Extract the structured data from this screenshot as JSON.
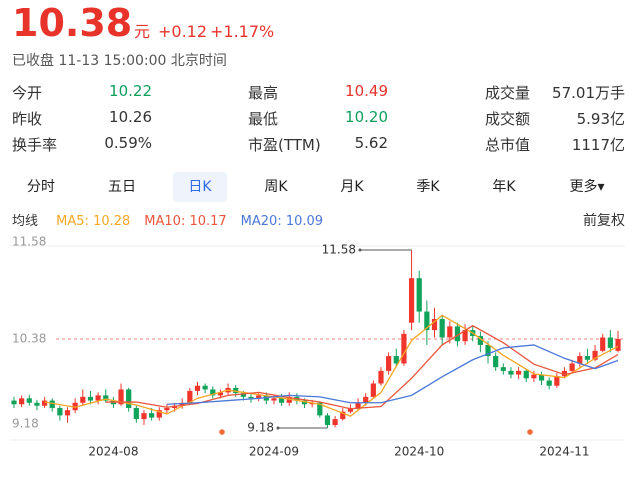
{
  "quote": {
    "price": "10.38",
    "unit": "元",
    "change": "+0.12",
    "change_pct": "+1.17%",
    "status": "已收盘 11-13 15:00:00 北京时间"
  },
  "stats": [
    [
      {
        "label": "今开",
        "value": "10.22",
        "color": "#0e9f5d"
      },
      {
        "label": "最高",
        "value": "10.49",
        "color": "#e8332b"
      },
      {
        "label": "成交量",
        "value": "57.01万手"
      }
    ],
    [
      {
        "label": "昨收",
        "value": "10.26"
      },
      {
        "label": "最低",
        "value": "10.20",
        "color": "#0e9f5d"
      },
      {
        "label": "成交额",
        "value": "5.93亿"
      }
    ],
    [
      {
        "label": "换手率",
        "value": "0.59%"
      },
      {
        "label": "市盈(TTM)",
        "value": "5.62"
      },
      {
        "label": "总市值",
        "value": "1117亿"
      }
    ]
  ],
  "tabs": [
    "分时",
    "五日",
    "日K",
    "周K",
    "月K",
    "季K",
    "年K",
    "更多▾"
  ],
  "active_tab": 2,
  "chart_data": {
    "type": "candlestick",
    "ma_label": "均线",
    "adjust": "前复权",
    "up_color": "#f0362c",
    "down_color": "#10a35a",
    "ylim": [
      9.18,
      11.58
    ],
    "yticks": [
      9.18,
      10.38,
      11.58
    ],
    "categories": [
      null,
      null,
      null,
      null,
      null,
      null,
      null,
      null,
      null,
      null,
      null,
      null,
      null,
      "2024-08",
      null,
      null,
      null,
      null,
      null,
      null,
      null,
      null,
      null,
      null,
      null,
      null,
      null,
      null,
      null,
      null,
      null,
      null,
      null,
      null,
      "2024-09",
      null,
      null,
      null,
      null,
      null,
      null,
      null,
      null,
      null,
      null,
      null,
      null,
      null,
      null,
      null,
      null,
      null,
      null,
      "2024-10",
      null,
      null,
      null,
      null,
      null,
      null,
      null,
      null,
      null,
      null,
      null,
      null,
      null,
      null,
      null,
      null,
      null,
      null,
      "2024-11",
      null,
      null,
      null,
      null,
      null,
      null,
      null,
      null
    ],
    "candles": [
      [
        9.55,
        9.5,
        9.6,
        9.45
      ],
      [
        9.5,
        9.58,
        9.62,
        9.46
      ],
      [
        9.58,
        9.52,
        9.63,
        9.48
      ],
      [
        9.52,
        9.48,
        9.56,
        9.42
      ],
      [
        9.48,
        9.55,
        9.6,
        9.45
      ],
      [
        9.55,
        9.45,
        9.58,
        9.4
      ],
      [
        9.45,
        9.35,
        9.48,
        9.28
      ],
      [
        9.35,
        9.42,
        9.46,
        9.25
      ],
      [
        9.42,
        9.52,
        9.58,
        9.38
      ],
      [
        9.52,
        9.6,
        9.7,
        9.48
      ],
      [
        9.6,
        9.55,
        9.68,
        9.5
      ],
      [
        9.55,
        9.62,
        9.66,
        9.5
      ],
      [
        9.62,
        9.55,
        9.7,
        9.52
      ],
      [
        9.55,
        9.5,
        9.6,
        9.45
      ],
      [
        9.5,
        9.7,
        9.78,
        9.48
      ],
      [
        9.7,
        9.45,
        9.72,
        9.4
      ],
      [
        9.45,
        9.3,
        9.48,
        9.25
      ],
      [
        9.3,
        9.38,
        9.42,
        9.22
      ],
      [
        9.38,
        9.32,
        9.45,
        9.28
      ],
      [
        9.32,
        9.42,
        9.46,
        9.28
      ],
      [
        9.42,
        9.45,
        9.5,
        9.38
      ],
      [
        9.45,
        9.48,
        9.52,
        9.4
      ],
      [
        9.48,
        9.52,
        9.58,
        9.44
      ],
      [
        9.52,
        9.68,
        9.72,
        9.5
      ],
      [
        9.68,
        9.75,
        9.8,
        9.62
      ],
      [
        9.75,
        9.7,
        9.78,
        9.65
      ],
      [
        9.7,
        9.62,
        9.74,
        9.58
      ],
      [
        9.62,
        9.66,
        9.7,
        9.58
      ],
      [
        9.66,
        9.72,
        9.78,
        9.62
      ],
      [
        9.72,
        9.65,
        9.76,
        9.6
      ],
      [
        9.65,
        9.6,
        9.68,
        9.55
      ],
      [
        9.6,
        9.58,
        9.64,
        9.52
      ],
      [
        9.58,
        9.62,
        9.66,
        9.54
      ],
      [
        9.62,
        9.55,
        9.66,
        9.5
      ],
      [
        9.55,
        9.58,
        9.62,
        9.5
      ],
      [
        9.58,
        9.52,
        9.64,
        9.48
      ],
      [
        9.52,
        9.6,
        9.66,
        9.48
      ],
      [
        9.6,
        9.55,
        9.65,
        9.5
      ],
      [
        9.55,
        9.5,
        9.58,
        9.45
      ],
      [
        9.5,
        9.52,
        9.56,
        9.46
      ],
      [
        9.52,
        9.35,
        9.54,
        9.32
      ],
      [
        9.35,
        9.22,
        9.38,
        9.18
      ],
      [
        9.22,
        9.3,
        9.34,
        9.19
      ],
      [
        9.3,
        9.4,
        9.45,
        9.28
      ],
      [
        9.4,
        9.45,
        9.5,
        9.38
      ],
      [
        9.45,
        9.52,
        9.58,
        9.42
      ],
      [
        9.52,
        9.6,
        9.65,
        9.48
      ],
      [
        9.6,
        9.78,
        9.82,
        9.58
      ],
      [
        9.78,
        9.95,
        10.0,
        9.75
      ],
      [
        9.95,
        10.15,
        10.2,
        9.9
      ],
      [
        10.15,
        10.05,
        10.25,
        10.0
      ],
      [
        10.05,
        10.45,
        10.5,
        10.02
      ],
      [
        10.6,
        11.2,
        11.58,
        10.5
      ],
      [
        11.2,
        10.75,
        11.3,
        10.6
      ],
      [
        10.75,
        10.5,
        10.9,
        10.3
      ],
      [
        10.5,
        10.65,
        10.8,
        10.4
      ],
      [
        10.65,
        10.4,
        10.7,
        10.3
      ],
      [
        10.4,
        10.55,
        10.62,
        10.32
      ],
      [
        10.55,
        10.35,
        10.6,
        10.28
      ],
      [
        10.35,
        10.5,
        10.58,
        10.3
      ],
      [
        10.5,
        10.42,
        10.55,
        10.35
      ],
      [
        10.42,
        10.3,
        10.48,
        10.2
      ],
      [
        10.3,
        10.15,
        10.35,
        10.05
      ],
      [
        10.15,
        10.0,
        10.2,
        9.95
      ],
      [
        10.0,
        9.95,
        10.05,
        9.9
      ],
      [
        9.95,
        9.9,
        10.0,
        9.85
      ],
      [
        9.9,
        9.95,
        10.0,
        9.84
      ],
      [
        9.95,
        9.85,
        9.98,
        9.8
      ],
      [
        9.85,
        9.9,
        9.95,
        9.8
      ],
      [
        9.9,
        9.82,
        9.94,
        9.76
      ],
      [
        9.82,
        9.75,
        9.86,
        9.7
      ],
      [
        9.75,
        9.88,
        9.92,
        9.72
      ],
      [
        9.88,
        9.95,
        10.0,
        9.85
      ],
      [
        9.95,
        10.05,
        10.1,
        9.92
      ],
      [
        10.05,
        10.15,
        10.2,
        10.0
      ],
      [
        10.15,
        10.1,
        10.25,
        10.05
      ],
      [
        10.1,
        10.22,
        10.3,
        10.08
      ],
      [
        10.22,
        10.4,
        10.45,
        10.2
      ],
      [
        10.4,
        10.26,
        10.5,
        10.2
      ],
      [
        10.22,
        10.38,
        10.49,
        10.2
      ]
    ],
    "series": [
      {
        "name": "MA5",
        "color": "#f5a623",
        "x": [
          4,
          8,
          12,
          16,
          20,
          24,
          28,
          32,
          36,
          40,
          44,
          48,
          52,
          56,
          60,
          64,
          68,
          72,
          76,
          79
        ],
        "values": [
          9.53,
          9.46,
          9.57,
          9.49,
          9.37,
          9.58,
          9.69,
          9.63,
          9.57,
          9.5,
          9.34,
          9.66,
          10.36,
          10.7,
          10.46,
          10.16,
          9.91,
          9.86,
          10.12,
          10.28
        ]
      },
      {
        "name": "MA10",
        "color": "#e9553a",
        "x": [
          12,
          16,
          20,
          24,
          28,
          32,
          36,
          40,
          44,
          48,
          52,
          56,
          60,
          64,
          68,
          72,
          76,
          79
        ],
        "values": [
          9.53,
          9.53,
          9.46,
          9.51,
          9.62,
          9.66,
          9.59,
          9.53,
          9.44,
          9.47,
          9.85,
          10.3,
          10.56,
          10.33,
          10.04,
          9.9,
          9.99,
          10.17
        ]
      },
      {
        "name": "MA20",
        "color": "#4a78d8",
        "x": [
          20,
          24,
          28,
          32,
          36,
          40,
          44,
          48,
          52,
          56,
          60,
          64,
          68,
          72,
          76,
          79
        ],
        "values": [
          9.5,
          9.52,
          9.55,
          9.58,
          9.62,
          9.6,
          9.52,
          9.52,
          9.62,
          9.87,
          10.1,
          10.26,
          10.3,
          10.12,
          9.98,
          10.09
        ]
      }
    ],
    "high_annotation": "chart_data.candles.52.2",
    "low_annotation": "chart_data.candles.41.3"
  }
}
